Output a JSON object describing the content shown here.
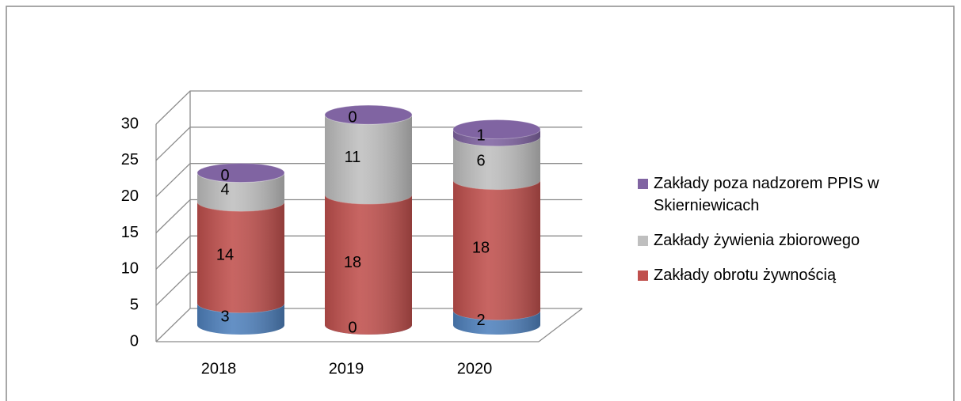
{
  "chart_data": {
    "type": "bar3d_cylinder_stacked",
    "categories": [
      "2018",
      "2019",
      "2020"
    ],
    "series": [
      {
        "color": "#4f81bd",
        "values": [
          3,
          0,
          2
        ]
      },
      {
        "name": "Zakłady obrotu żywnością",
        "color": "#c0504d",
        "values": [
          14,
          18,
          18
        ]
      },
      {
        "name": "Zakłady żywienia zbiorowego",
        "color": "#bfbfbf",
        "values": [
          4,
          11,
          6
        ]
      },
      {
        "name": "Zakłady poza nadzorem PPIS w Skierniewicach",
        "color": "#8064a2",
        "values": [
          0,
          0,
          1
        ]
      }
    ],
    "ylim": [
      0,
      30
    ],
    "yticks": [
      0,
      5,
      10,
      15,
      20,
      25,
      30
    ],
    "grid": true,
    "legend": "right"
  }
}
